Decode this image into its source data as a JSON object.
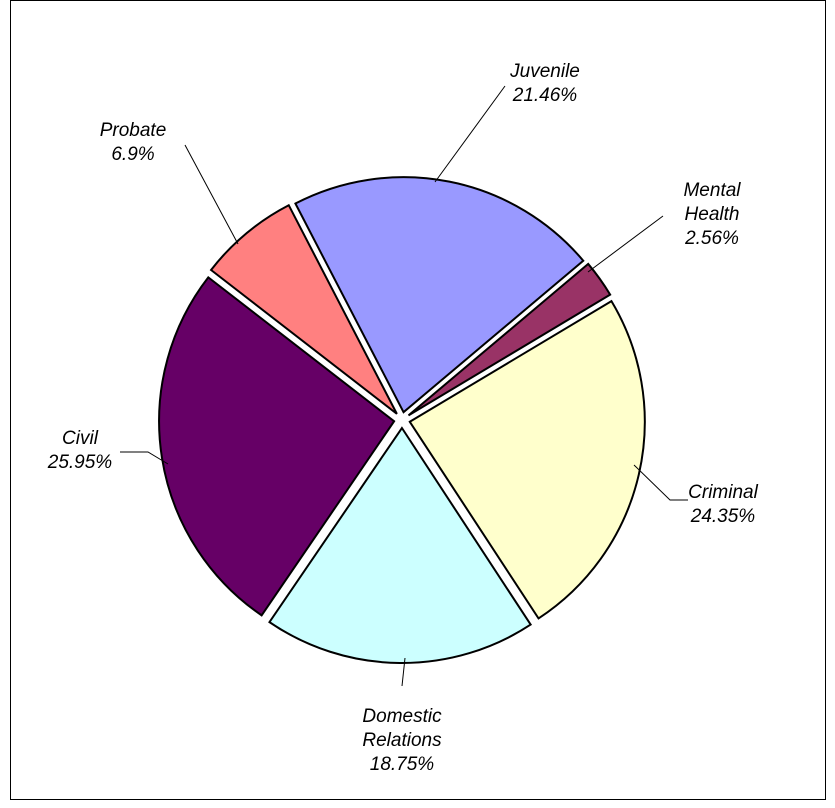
{
  "chart_data": {
    "type": "pie",
    "title": "",
    "slices": [
      {
        "id": "juvenile",
        "label_lines": [
          "Juvenile"
        ],
        "percent_label": "21.46%",
        "value": 21.46,
        "color": "#9999ff"
      },
      {
        "id": "mental-health",
        "label_lines": [
          "Mental",
          "Health"
        ],
        "percent_label": "2.56%",
        "value": 2.56,
        "color": "#993366"
      },
      {
        "id": "criminal",
        "label_lines": [
          "Criminal"
        ],
        "percent_label": "24.35%",
        "value": 24.35,
        "color": "#ffffcc"
      },
      {
        "id": "domestic-relations",
        "label_lines": [
          "Domestic",
          "Relations"
        ],
        "percent_label": "18.75%",
        "value": 18.75,
        "color": "#ccffff"
      },
      {
        "id": "civil",
        "label_lines": [
          "Civil"
        ],
        "percent_label": "25.95%",
        "value": 25.95,
        "color": "#660066"
      },
      {
        "id": "probate",
        "label_lines": [
          "Probate"
        ],
        "percent_label": "6.9%",
        "value": 6.9,
        "color": "#ff8080"
      }
    ],
    "legend": "none",
    "data_labels": "category name and percentage, outside with leader lines"
  }
}
